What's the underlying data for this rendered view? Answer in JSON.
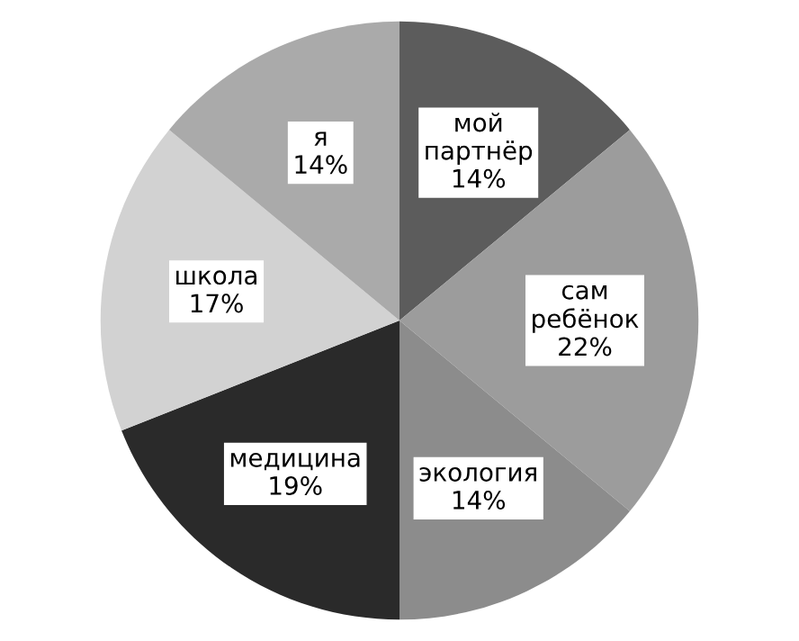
{
  "chart_data": {
    "type": "pie",
    "categories": [
      "мой партнёр",
      "сам ребёнок",
      "экология",
      "медицина",
      "школа",
      "я"
    ],
    "values": [
      14,
      22,
      14,
      19,
      17,
      14
    ],
    "colors": [
      "#5c5c5c",
      "#9c9c9c",
      "#8c8c8c",
      "#2a2a2a",
      "#d2d2d2",
      "#aaaaaa"
    ],
    "value_labels": [
      "14%",
      "22%",
      "14%",
      "19%",
      "17%",
      "14%"
    ],
    "legend": false
  }
}
